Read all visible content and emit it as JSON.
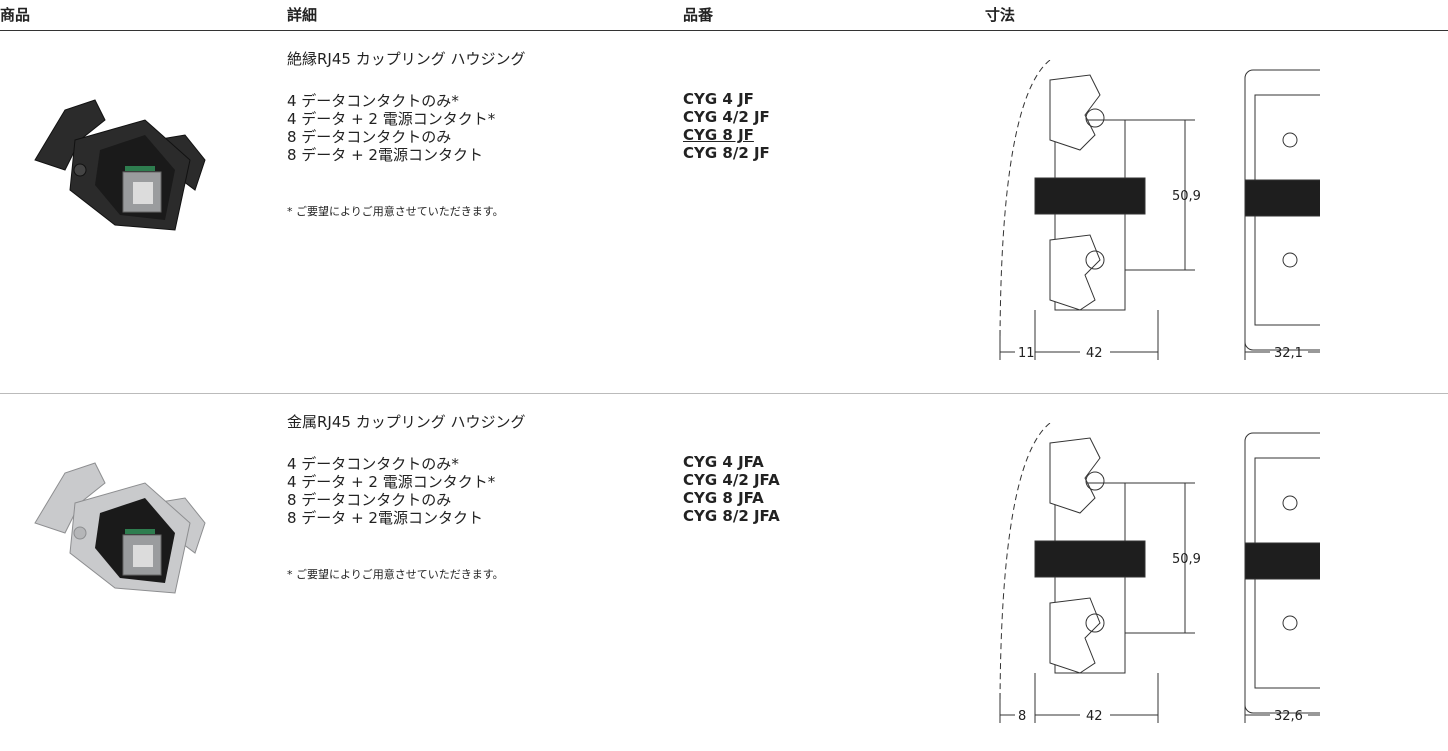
{
  "table": {
    "headers": [
      "商品",
      "詳細",
      "品番",
      "寸法"
    ],
    "rows": [
      {
        "title": "絶縁RJ45 カップリング ハウジング",
        "items": [
          "4 データコンタクトのみ*",
          "4 データ + 2 電源コンタクト*",
          "8 データコンタクトのみ",
          "8 データ + 2電源コンタクト"
        ],
        "part_numbers": [
          "CYG 4 JF",
          "CYG 4/2 JF",
          "CYG 8 JF",
          "CYG 8/2 JF"
        ],
        "note": "* ご要望によりご用意させていただきます。",
        "dimensions": {
          "height": "50,9",
          "offset": "11",
          "width": "42",
          "depth": "32,1"
        }
      },
      {
        "title": "金属RJ45 カップリング ハウジング",
        "items": [
          "4 データコンタクトのみ*",
          "4 データ + 2 電源コンタクト*",
          "8 データコンタクトのみ",
          "8 データ + 2電源コンタクト"
        ],
        "part_numbers": [
          "CYG 4 JFA",
          "CYG 4/2 JFA",
          "CYG 8 JFA",
          "CYG 8/2 JFA"
        ],
        "note": "* ご要望によりご用意させていただきます。",
        "dimensions": {
          "height": "50,9",
          "offset": "8",
          "width": "42",
          "depth": "32,6"
        }
      }
    ]
  }
}
